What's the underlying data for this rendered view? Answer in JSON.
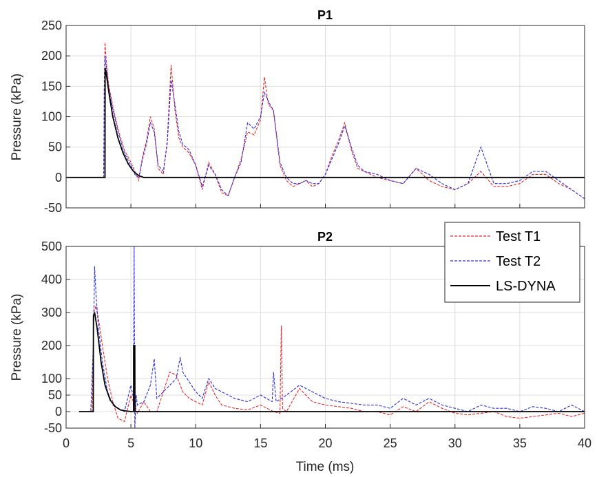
{
  "chart_data": [
    {
      "type": "line",
      "title": "P1",
      "xlabel": "",
      "ylabel": "Pressure (kPa)",
      "xlim": [
        0,
        40
      ],
      "ylim": [
        -50,
        250
      ],
      "xticks": [
        "0",
        "5",
        "10",
        "15",
        "20",
        "25",
        "30",
        "35",
        "40"
      ],
      "yticks": [
        "250",
        "200",
        "150",
        "100",
        "50",
        "0",
        "-50"
      ],
      "grid": true,
      "series": [
        {
          "name": "Test T1",
          "color": "#e8252a",
          "dash": "dashed",
          "x": [
            0,
            2.9,
            2.95,
            3.0,
            3.1,
            3.3,
            3.6,
            4.0,
            4.5,
            5.0,
            5.3,
            5.6,
            5.9,
            6.2,
            6.5,
            6.8,
            7.1,
            7.5,
            7.8,
            8.1,
            8.4,
            8.7,
            9.0,
            9.5,
            10.0,
            10.5,
            11.0,
            11.5,
            12.0,
            12.5,
            13.0,
            13.5,
            14.0,
            14.5,
            15.0,
            15.3,
            15.6,
            16.0,
            16.5,
            17.0,
            17.5,
            18.0,
            18.5,
            19.0,
            19.5,
            20.0,
            20.5,
            21.0,
            21.5,
            22.0,
            22.5,
            23.0,
            24.0,
            25.0,
            26.0,
            27.0,
            28.0,
            29.0,
            30.0,
            31.0,
            32.0,
            33.0,
            34.0,
            35.0,
            36.0,
            37.0,
            38.0,
            39.0,
            40.0
          ],
          "y": [
            0,
            0,
            160,
            222,
            190,
            150,
            118,
            80,
            45,
            25,
            10,
            -5,
            35,
            60,
            100,
            80,
            15,
            5,
            60,
            185,
            110,
            65,
            50,
            40,
            20,
            -20,
            25,
            5,
            -25,
            -30,
            0,
            30,
            75,
            70,
            95,
            165,
            120,
            110,
            20,
            -5,
            -15,
            -10,
            -5,
            -15,
            -10,
            5,
            35,
            60,
            90,
            45,
            15,
            10,
            0,
            -5,
            -10,
            15,
            -5,
            -15,
            -20,
            -10,
            10,
            -15,
            -15,
            -10,
            5,
            5,
            -10,
            -20,
            -35
          ]
        },
        {
          "name": "Test T2",
          "color": "#2a2ae0",
          "dash": "dashed",
          "x": [
            0,
            2.9,
            2.95,
            3.0,
            3.1,
            3.3,
            3.6,
            4.0,
            4.5,
            5.0,
            5.3,
            5.6,
            5.9,
            6.2,
            6.5,
            6.8,
            7.1,
            7.5,
            7.8,
            8.1,
            8.4,
            8.7,
            9.0,
            9.5,
            10.0,
            10.5,
            11.0,
            11.5,
            12.0,
            12.5,
            13.0,
            13.5,
            14.0,
            14.5,
            15.0,
            15.3,
            15.6,
            16.0,
            16.5,
            17.0,
            17.5,
            18.0,
            18.5,
            19.0,
            19.5,
            20.0,
            20.5,
            21.0,
            21.5,
            22.0,
            22.5,
            23.0,
            24.0,
            25.0,
            26.0,
            27.0,
            28.0,
            29.0,
            30.0,
            31.0,
            32.0,
            33.0,
            34.0,
            35.0,
            36.0,
            37.0,
            38.0,
            39.0,
            40.0
          ],
          "y": [
            0,
            0,
            150,
            200,
            180,
            145,
            112,
            75,
            40,
            20,
            5,
            0,
            30,
            55,
            90,
            75,
            20,
            10,
            55,
            160,
            120,
            75,
            55,
            45,
            20,
            -15,
            20,
            5,
            -20,
            -30,
            0,
            25,
            90,
            80,
            100,
            140,
            125,
            110,
            25,
            0,
            -10,
            -10,
            -5,
            -10,
            -10,
            5,
            30,
            55,
            85,
            50,
            20,
            10,
            5,
            -5,
            -10,
            15,
            5,
            -10,
            -20,
            -10,
            50,
            -10,
            -10,
            -5,
            10,
            10,
            -5,
            -20,
            -35
          ]
        },
        {
          "name": "LS-DYNA",
          "color": "#000000",
          "dash": "solid",
          "x": [
            0,
            3.0,
            3.01,
            3.1,
            3.3,
            3.6,
            4.0,
            4.4,
            4.8,
            5.2,
            5.6,
            6.0,
            40.0
          ],
          "y": [
            0,
            0,
            180,
            170,
            140,
            100,
            65,
            40,
            22,
            10,
            3,
            0,
            0
          ]
        }
      ]
    },
    {
      "type": "line",
      "title": "P2",
      "xlabel": "Time (ms)",
      "ylabel": "Pressure (kPa)",
      "xlim": [
        0,
        40
      ],
      "ylim": [
        -50,
        500
      ],
      "xticks": [
        "0",
        "5",
        "10",
        "15",
        "20",
        "25",
        "30",
        "35",
        "40"
      ],
      "yticks": [
        "500",
        "400",
        "300",
        "200",
        "100",
        "50",
        "0",
        "-50"
      ],
      "grid": true,
      "legend": "top-right",
      "series": [
        {
          "name": "Test T1",
          "color": "#e8252a",
          "dash": "dashed",
          "x": [
            1.0,
            2.0,
            2.15,
            2.3,
            2.5,
            2.8,
            3.2,
            3.6,
            4.0,
            4.5,
            5.0,
            5.5,
            6.0,
            6.5,
            7.0,
            7.5,
            8.0,
            8.5,
            9.0,
            9.5,
            10.0,
            10.5,
            11.0,
            11.5,
            12.0,
            13.0,
            14.0,
            15.0,
            16.0,
            16.5,
            16.6,
            16.7,
            17.0,
            18.0,
            19.0,
            20.0,
            21.0,
            22.0,
            23.0,
            24.0,
            25.0,
            26.0,
            27.0,
            28.0,
            29.0,
            30.0,
            31.0,
            32.0,
            33.0,
            34.0,
            35.0,
            36.0,
            37.0,
            38.0,
            39.0,
            40.0
          ],
          "y": [
            0,
            0,
            300,
            320,
            280,
            200,
            100,
            30,
            -20,
            -30,
            50,
            -5,
            30,
            0,
            0,
            60,
            120,
            110,
            60,
            40,
            30,
            20,
            90,
            50,
            20,
            10,
            5,
            20,
            0,
            -5,
            260,
            10,
            0,
            70,
            30,
            20,
            15,
            10,
            0,
            0,
            -10,
            15,
            0,
            30,
            10,
            -5,
            -10,
            -5,
            0,
            -15,
            -20,
            -15,
            -10,
            -5,
            -15,
            -5
          ]
        },
        {
          "name": "Test T2",
          "color": "#2a2ae0",
          "dash": "dashed",
          "x": [
            1.0,
            1.9,
            2.0,
            2.1,
            2.2,
            2.3,
            2.5,
            2.8,
            3.2,
            3.6,
            4.0,
            4.5,
            5.0,
            5.2,
            5.25,
            5.3,
            5.4,
            5.5,
            6.0,
            6.5,
            6.8,
            7.0,
            7.5,
            8.0,
            8.5,
            8.8,
            9.0,
            9.5,
            10.0,
            10.5,
            11.0,
            11.5,
            12.0,
            13.0,
            14.0,
            15.0,
            15.9,
            16.0,
            16.2,
            17.0,
            18.0,
            19.0,
            20.0,
            21.0,
            22.0,
            23.0,
            24.0,
            25.0,
            26.0,
            27.0,
            28.0,
            29.0,
            30.0,
            31.0,
            32.0,
            33.0,
            34.0,
            35.0,
            36.0,
            37.0,
            38.0,
            39.0,
            40.0
          ],
          "y": [
            0,
            0,
            100,
            200,
            440,
            360,
            250,
            150,
            60,
            20,
            10,
            0,
            80,
            40,
            500,
            -50,
            50,
            20,
            30,
            80,
            160,
            40,
            60,
            80,
            100,
            165,
            120,
            90,
            60,
            40,
            100,
            70,
            60,
            40,
            30,
            50,
            30,
            120,
            30,
            50,
            80,
            60,
            40,
            30,
            25,
            20,
            20,
            10,
            40,
            20,
            40,
            20,
            10,
            0,
            20,
            10,
            10,
            0,
            15,
            10,
            0,
            20,
            0
          ]
        },
        {
          "name": "LS-DYNA",
          "color": "#000000",
          "dash": "solid",
          "x": [
            1.0,
            2.1,
            2.11,
            2.2,
            2.4,
            2.7,
            3.0,
            3.4,
            3.8,
            4.2,
            4.6,
            5.0,
            5.2,
            5.21,
            5.3,
            5.31,
            6.0,
            40.0
          ],
          "y": [
            0,
            0,
            290,
            300,
            250,
            150,
            80,
            35,
            15,
            5,
            2,
            0,
            0,
            200,
            200,
            0,
            0,
            0
          ]
        }
      ]
    }
  ]
}
